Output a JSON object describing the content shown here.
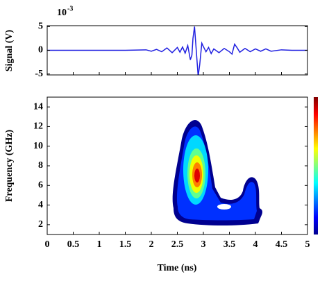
{
  "chart_data": [
    {
      "type": "line",
      "ylabel": "Signal (V)",
      "scale_base": "10",
      "scale_exponent": "-3",
      "xlim": [
        0,
        5
      ],
      "xticks": [
        0,
        0.5,
        1,
        1.5,
        2,
        2.5,
        3,
        3.5,
        4,
        4.5,
        5
      ],
      "ylim": [
        -5.2,
        5.2
      ],
      "yticks": [
        -5,
        0,
        5
      ],
      "x": [
        0,
        0.5,
        1,
        1.5,
        1.9,
        2.0,
        2.1,
        2.2,
        2.3,
        2.4,
        2.5,
        2.55,
        2.6,
        2.65,
        2.7,
        2.75,
        2.78,
        2.8,
        2.83,
        2.86,
        2.9,
        2.93,
        2.97,
        3.0,
        3.05,
        3.1,
        3.15,
        3.2,
        3.3,
        3.4,
        3.5,
        3.55,
        3.6,
        3.65,
        3.7,
        3.8,
        3.9,
        4.0,
        4.1,
        4.2,
        4.3,
        4.5,
        4.7,
        5
      ],
      "series": [
        {
          "color": "#1f1fe0",
          "values": [
            0,
            0,
            0,
            0,
            0.1,
            -0.2,
            0.2,
            -0.3,
            0.5,
            -0.5,
            0.6,
            -0.4,
            0.7,
            -0.6,
            1.0,
            -2.0,
            -1.0,
            2.5,
            5.0,
            0.5,
            -5.5,
            -3.0,
            1.5,
            0.8,
            -0.3,
            0.6,
            -0.7,
            0.3,
            -0.5,
            0.4,
            -0.3,
            -0.8,
            1.3,
            0.5,
            -0.4,
            0.4,
            -0.3,
            0.3,
            -0.2,
            0.3,
            -0.2,
            0.1,
            0,
            0
          ]
        }
      ]
    },
    {
      "type": "spectrogram",
      "ylabel": "Frequency (GHz)",
      "xlabel": "Time (ns)",
      "colormap": "jet",
      "colorbar": true,
      "xlim": [
        0,
        5
      ],
      "xticks": [
        0,
        0.5,
        1,
        1.5,
        2,
        2.5,
        3,
        3.5,
        4,
        4.5,
        5
      ],
      "ylim": [
        1,
        15
      ],
      "yticks": [
        2,
        4,
        6,
        8,
        10,
        12,
        14
      ]
    }
  ]
}
